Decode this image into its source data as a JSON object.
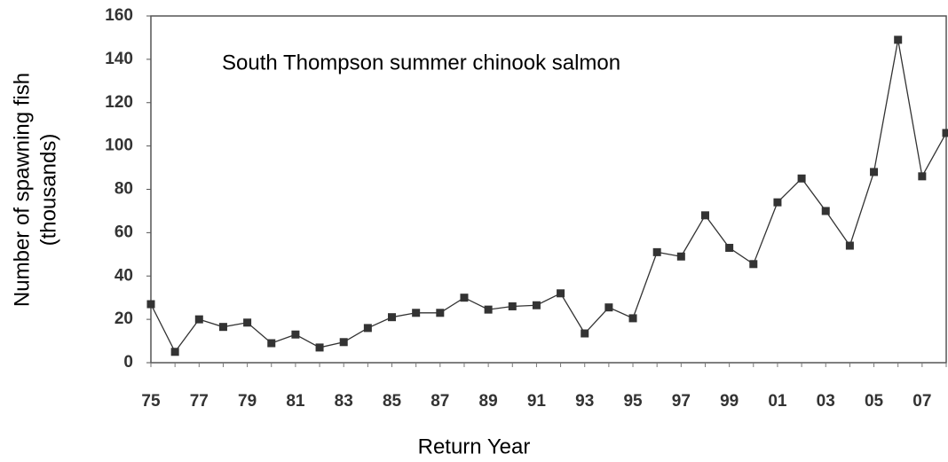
{
  "chart_data": {
    "type": "line",
    "title": "South Thompson summer chinook salmon",
    "x_label": "Return Year",
    "y_label": [
      "Number of spawning fish",
      "(thousands)"
    ],
    "categories": [
      "75",
      null,
      "77",
      null,
      "79",
      null,
      "81",
      null,
      "83",
      null,
      "85",
      null,
      "87",
      null,
      "89",
      null,
      "91",
      null,
      "93",
      null,
      "95",
      null,
      "97",
      null,
      "99",
      null,
      "01",
      null,
      "03",
      null,
      "05",
      null,
      "07",
      null
    ],
    "series": [
      {
        "color": "#333333",
        "values": [
          27,
          5,
          20,
          16.5,
          18.5,
          9,
          13,
          7,
          9.5,
          16,
          21,
          23,
          23,
          30,
          24.5,
          26,
          26.5,
          32,
          13.5,
          25.5,
          20.5,
          51,
          49,
          68,
          53,
          45.5,
          74,
          85,
          70,
          54,
          88,
          149,
          86,
          106
        ]
      }
    ],
    "ylim": [
      0,
      160
    ],
    "yticks": [
      0,
      20,
      40,
      60,
      80,
      100,
      120,
      140,
      160
    ],
    "grid": false
  }
}
